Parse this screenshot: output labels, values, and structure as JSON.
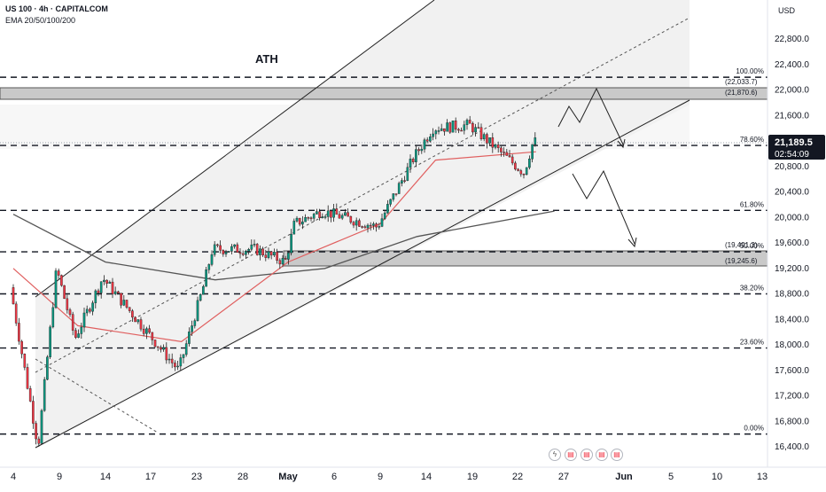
{
  "header": {
    "symbol_line": "US 100 · 4h · CAPITALCOM",
    "indicators_line": "EMA 20/50/100/200"
  },
  "price_axis": {
    "currency": "USD",
    "ticks": [
      "22,800.0",
      "22,400.0",
      "22,000.0",
      "21,600.0",
      "21,200.0",
      "20,800.0",
      "20,400.0",
      "20,000.0",
      "19,600.0",
      "19,200.0",
      "18,800.0",
      "18,400.0",
      "18,000.0",
      "17,600.0",
      "17,200.0",
      "16,800.0",
      "16,400.0"
    ],
    "current_price": "21,189.5",
    "countdown": "02:54:09"
  },
  "time_axis": {
    "ticks": [
      {
        "label": "4",
        "bold": false
      },
      {
        "label": "9",
        "bold": false
      },
      {
        "label": "14",
        "bold": false
      },
      {
        "label": "17",
        "bold": false
      },
      {
        "label": "23",
        "bold": false
      },
      {
        "label": "28",
        "bold": false
      },
      {
        "label": "May",
        "bold": true
      },
      {
        "label": "6",
        "bold": false
      },
      {
        "label": "9",
        "bold": false
      },
      {
        "label": "14",
        "bold": false
      },
      {
        "label": "19",
        "bold": false
      },
      {
        "label": "22",
        "bold": false
      },
      {
        "label": "27",
        "bold": false
      },
      {
        "label": "Jun",
        "bold": true
      },
      {
        "label": "5",
        "bold": false
      },
      {
        "label": "10",
        "bold": false
      },
      {
        "label": "13",
        "bold": false
      }
    ]
  },
  "annotations": {
    "ath_label": "ATH",
    "zone_upper_top": "(22,033.7)",
    "zone_upper_bottom": "(21,870.6)",
    "zone_lower_top": "(19,491.3)",
    "zone_lower_bottom": "(19,245.6)"
  },
  "fib_levels": [
    "100.00%",
    "78.60%",
    "61.80%",
    "50.00%",
    "38.20%",
    "23.60%",
    "0.00%"
  ],
  "colors": {
    "up": "#089981",
    "down": "#f23645",
    "ema_red": "#e05f5f",
    "ema_gray": "#555555",
    "price_tag": "#131722"
  },
  "chart_data": {
    "type": "candlestick",
    "symbol": "US 100",
    "timeframe": "4h",
    "y_axis": {
      "min": 16200,
      "max": 23200,
      "unit": "USD"
    },
    "path_key_prices": [
      {
        "date": "Apr 3",
        "price": 18900
      },
      {
        "date": "Apr 7",
        "price": 16400
      },
      {
        "date": "Apr 9",
        "price": 19200
      },
      {
        "date": "Apr 11",
        "price": 18100
      },
      {
        "date": "Apr 14",
        "price": 19050
      },
      {
        "date": "Apr 21",
        "price": 17600
      },
      {
        "date": "Apr 24",
        "price": 18900
      },
      {
        "date": "Apr 25",
        "price": 19500
      },
      {
        "date": "Apr 29",
        "price": 19500
      },
      {
        "date": "May 1",
        "price": 19300
      },
      {
        "date": "May 2",
        "price": 19900
      },
      {
        "date": "May 5",
        "price": 20100
      },
      {
        "date": "May 9",
        "price": 19850
      },
      {
        "date": "May 13",
        "price": 20950
      },
      {
        "date": "May 15",
        "price": 21400
      },
      {
        "date": "May 19",
        "price": 21450
      },
      {
        "date": "May 23",
        "price": 20700
      },
      {
        "date": "May 24",
        "price": 21190
      }
    ],
    "emas": [
      {
        "name": "EMA 50",
        "values": [
          {
            "date": "Apr 3",
            "price": 19200
          },
          {
            "date": "Apr 11",
            "price": 18300
          },
          {
            "date": "Apr 21",
            "price": 18050
          },
          {
            "date": "May 1",
            "price": 19300
          },
          {
            "date": "May 9",
            "price": 19900
          },
          {
            "date": "May 15",
            "price": 20900
          },
          {
            "date": "May 24",
            "price": 21030
          }
        ]
      },
      {
        "name": "EMA 200",
        "values": [
          {
            "date": "Apr 3",
            "price": 20050
          },
          {
            "date": "Apr 14",
            "price": 19300
          },
          {
            "date": "Apr 25",
            "price": 19020
          },
          {
            "date": "May 5",
            "price": 19200
          },
          {
            "date": "May 13",
            "price": 19700
          },
          {
            "date": "May 26",
            "price": 20100
          }
        ]
      }
    ],
    "horizontal_levels": [
      {
        "label": "100.00%",
        "price": 22200
      },
      {
        "label": "78.60%",
        "price": 21130
      },
      {
        "label": "61.80%",
        "price": 20110
      },
      {
        "label": "50.00%",
        "price": 19460
      },
      {
        "label": "38.20%",
        "price": 18800
      },
      {
        "label": "23.60%",
        "price": 17950
      },
      {
        "label": "0.00%",
        "price": 16600
      }
    ],
    "zones": [
      {
        "top": 22033.7,
        "bottom": 21870.6
      },
      {
        "top": 19491.3,
        "bottom": 19245.6
      }
    ]
  }
}
